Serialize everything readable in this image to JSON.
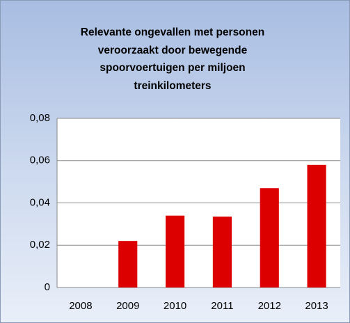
{
  "chart_data": {
    "type": "bar",
    "title": "Relevante ongevallen met personen veroorzaakt door bewegende spoorvoertuigen per miljoen treinkilometers",
    "categories": [
      "2008",
      "2009",
      "2010",
      "2011",
      "2012",
      "2013"
    ],
    "values": [
      0,
      0.022,
      0.034,
      0.0335,
      0.047,
      0.058
    ],
    "color": "#dd0000",
    "ylim": [
      0,
      0.08
    ],
    "yticks": [
      0,
      {
        "value": 0.02,
        "label": "0,02"
      },
      {
        "value": 0.04,
        "label": "0,04"
      },
      {
        "value": 0.06,
        "label": "0,06"
      },
      {
        "value": 0.08,
        "label": "0,08"
      }
    ],
    "grid": true
  }
}
